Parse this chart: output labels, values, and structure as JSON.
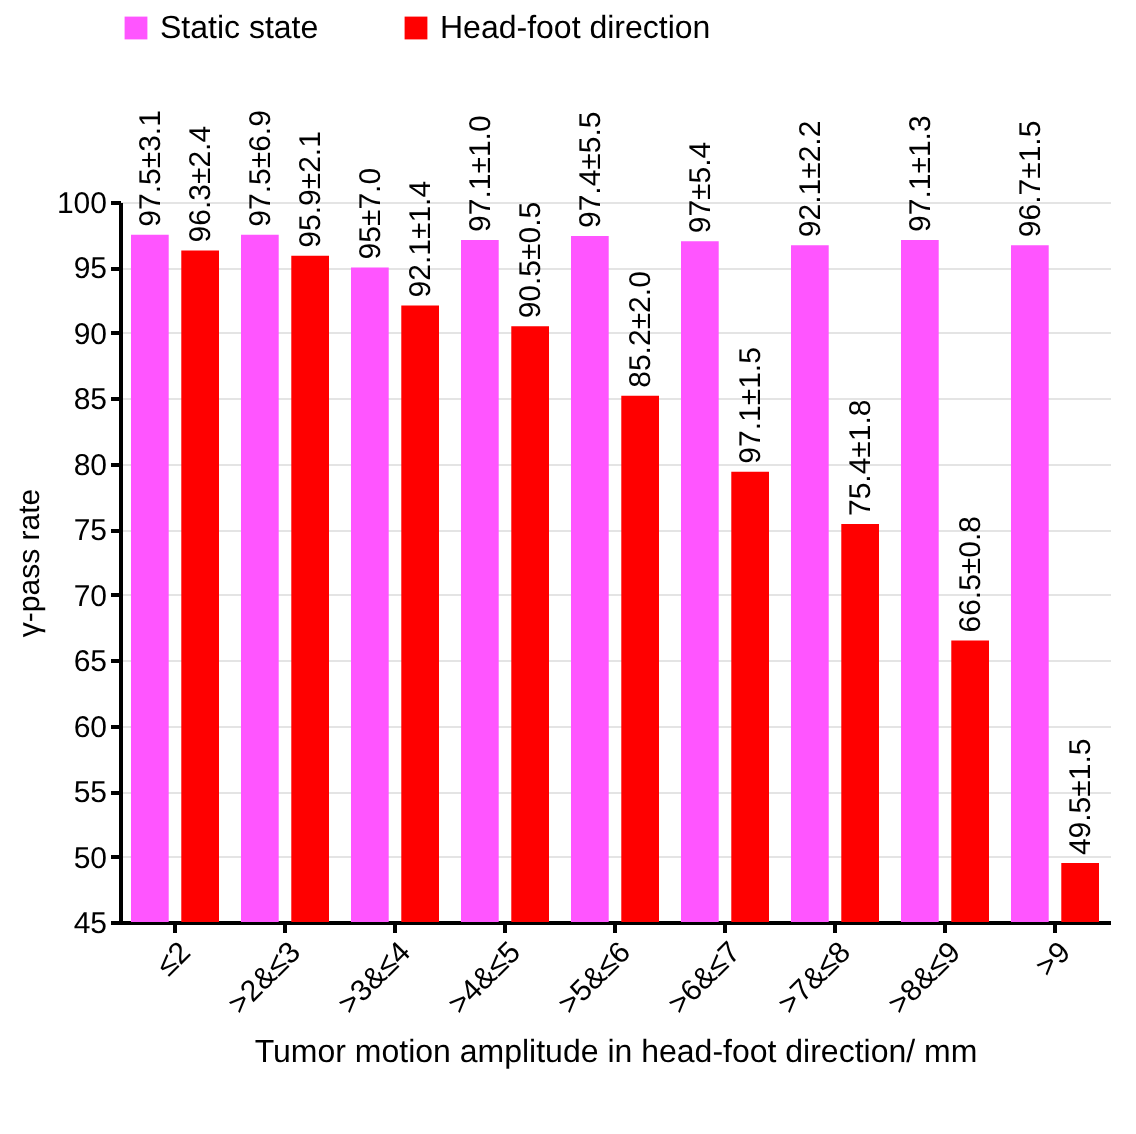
{
  "chart_data": {
    "type": "bar",
    "xlabel": "Tumor motion amplitude in head-foot direction/ mm",
    "ylabel": "γ-pass rate",
    "categories": [
      "≤2",
      ">2&≤3",
      ">3&≤4",
      ">4&≤5",
      ">5&≤6",
      ">6&≤7",
      ">7&≤8",
      ">8&≤9",
      ">9"
    ],
    "series": [
      {
        "name": "Static state",
        "color": "#ff55ff",
        "values": [
          97.5,
          97.5,
          95,
          97.1,
          97.4,
          97,
          96.7,
          97.1,
          96.7
        ],
        "value_labels": [
          "97.5±3.1",
          "97.5±6.9",
          "95±7.0",
          "97.1±1.0",
          "97.4±5.5",
          "97±5.4",
          null,
          "97.1±1.3",
          "96.7±1.5"
        ]
      },
      {
        "name": "Head-foot direction",
        "color": "#ff0000",
        "values": [
          96.3,
          95.9,
          92.1,
          90.5,
          85.2,
          79.4,
          75.4,
          66.5,
          49.5
        ],
        "value_labels": [
          "96.3±2.4",
          "95.9±2.1",
          "92.1±1.4",
          "90.5±0.5",
          "85.2±2.0",
          null,
          "75.4±1.8",
          "66.5±0.8",
          "49.5±1.5"
        ]
      }
    ],
    "annotations": [
      {
        "text": "92.1±2.2",
        "x": ">7&≤8",
        "y": 96.7
      },
      {
        "text": "97.1±1.5",
        "x": ">6&≤7",
        "y": 79.4
      }
    ],
    "ylim": [
      45,
      100
    ],
    "yticks": [
      45,
      50,
      55,
      60,
      65,
      70,
      75,
      80,
      85,
      90,
      95,
      100
    ],
    "grid": "y",
    "legend": "top left"
  }
}
